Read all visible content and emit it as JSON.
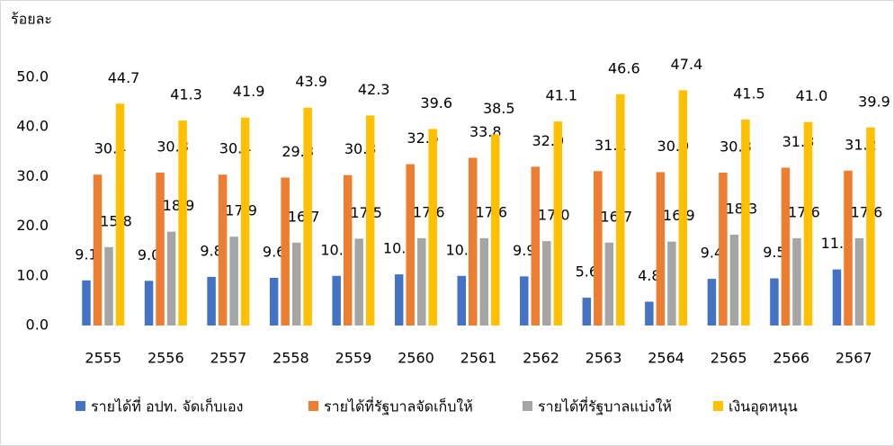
{
  "chart_data": {
    "type": "bar",
    "ylabel": "ร้อยละ",
    "categories": [
      "2555",
      "2556",
      "2557",
      "2558",
      "2559",
      "2560",
      "2561",
      "2562",
      "2563",
      "2564",
      "2565",
      "2566",
      "2567"
    ],
    "series": [
      {
        "name": "รายได้ที่ อปท. จัดเก็บเอง",
        "color": "#4472c4",
        "label_color": "#2e75b6",
        "values": [
          9.1,
          9.0,
          9.8,
          9.6,
          10.0,
          10.3,
          10.0,
          9.9,
          5.6,
          4.8,
          9.4,
          9.5,
          11.3
        ],
        "value_labels": [
          "9.1",
          "9.0",
          "9.8",
          "9.6",
          "10.0",
          "10.3",
          "10.0",
          "9.9",
          "5.6",
          "4.8",
          "9.4",
          "9.5",
          "11.3"
        ]
      },
      {
        "name": "รายได้ที่รัฐบาลจัดเก็บให้",
        "color": "#ed7d31",
        "label_color": "#c55a11",
        "values": [
          30.4,
          30.8,
          30.4,
          29.8,
          30.3,
          32.5,
          33.8,
          32.0,
          31.1,
          30.9,
          30.8,
          31.8,
          31.2
        ],
        "value_labels": [
          "30.4",
          "30.8",
          "30.4",
          "29.8",
          "30.3",
          "32.5",
          "33.8",
          "32.0",
          "31.1",
          "30.9",
          "30.8",
          "31.8",
          "31.2"
        ]
      },
      {
        "name": "รายได้ที่รัฐบาลแบ่งให้",
        "color": "#a5a5a5",
        "label_color": "#000000",
        "values": [
          15.8,
          18.9,
          17.9,
          16.7,
          17.5,
          17.6,
          17.6,
          17.0,
          16.7,
          16.9,
          18.3,
          17.6,
          17.6
        ],
        "value_labels": [
          "15.8",
          "18.9",
          "17.9",
          "16.7",
          "17.5",
          "17.6",
          "17.6",
          "17.0",
          "16.7",
          "16.9",
          "18.3",
          "17.6",
          "17.6"
        ]
      },
      {
        "name": "เงินอุดหนุน",
        "color": "#ffc000",
        "label_color": "#f2b300",
        "values": [
          44.7,
          41.3,
          41.9,
          43.9,
          42.3,
          39.6,
          38.5,
          41.1,
          46.6,
          47.4,
          41.5,
          41.0,
          39.9
        ],
        "value_labels": [
          "44.7",
          "41.3",
          "41.9",
          "43.9",
          "42.3",
          "39.6",
          "38.5",
          "41.1",
          "46.6",
          "47.4",
          "41.5",
          "41.0",
          "39.9"
        ]
      }
    ],
    "ylim": [
      0,
      50
    ],
    "yticks": [
      {
        "value": 0,
        "label": "0.0"
      },
      {
        "value": 10,
        "label": "10.0"
      },
      {
        "value": 20,
        "label": "20.0"
      },
      {
        "value": 30,
        "label": "30.0"
      },
      {
        "value": 40,
        "label": "40.0"
      },
      {
        "value": 50,
        "label": "50.0"
      }
    ],
    "grid": false,
    "legend": "bottom"
  }
}
